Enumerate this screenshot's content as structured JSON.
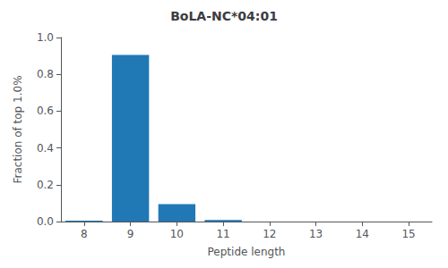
{
  "chart_data": {
    "type": "bar",
    "title": "BoLA-NC*04:01",
    "xlabel": "Peptide length",
    "ylabel": "Fraction of top 1.0%",
    "x": [
      8,
      9,
      10,
      11,
      12,
      13,
      14,
      15
    ],
    "values": [
      0.005,
      0.905,
      0.095,
      0.009,
      0.0,
      0.0,
      0.0,
      0.0
    ],
    "color": "#2078b4",
    "xlim": [
      7.5,
      15.5
    ],
    "ylim": [
      0.0,
      1.0
    ],
    "xticks": [
      8,
      9,
      10,
      11,
      12,
      13,
      14,
      15
    ],
    "yticks": [
      {
        "value": 0.0,
        "label": "0.0"
      },
      0.2,
      0.4,
      0.6,
      0.8,
      {
        "value": 1.0,
        "label": "1.0"
      }
    ],
    "grid": false
  }
}
